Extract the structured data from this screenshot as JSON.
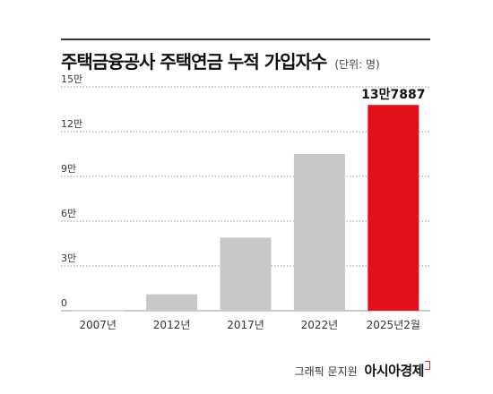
{
  "header": {
    "title": "주택금융공사 주택연금 누적 가입자수",
    "unit": "(단위: 명)"
  },
  "footer": {
    "credit": "그래픽 문지원",
    "brand": "아시아경제"
  },
  "colors": {
    "bar_default": "#c8c8c8",
    "bar_highlight": "#e3101c",
    "grid": "#9a9a9a",
    "text": "#333333"
  },
  "chart_data": {
    "type": "bar",
    "categories": [
      "2007년",
      "2012년",
      "2017년",
      "2022년",
      "2025년2월"
    ],
    "values": [
      400,
      11000,
      49000,
      105000,
      137887
    ],
    "highlight_index": 4,
    "data_labels": [
      "",
      "",
      "",
      "",
      "13만7887"
    ],
    "y_ticks": [
      {
        "value": 0,
        "label": "0"
      },
      {
        "value": 30000,
        "label": "3만"
      },
      {
        "value": 60000,
        "label": "6만"
      },
      {
        "value": 90000,
        "label": "9만"
      },
      {
        "value": 120000,
        "label": "12만"
      },
      {
        "value": 150000,
        "label": "15만"
      }
    ],
    "ylim": [
      0,
      150000
    ],
    "grid": true,
    "grid_style": "dotted"
  }
}
